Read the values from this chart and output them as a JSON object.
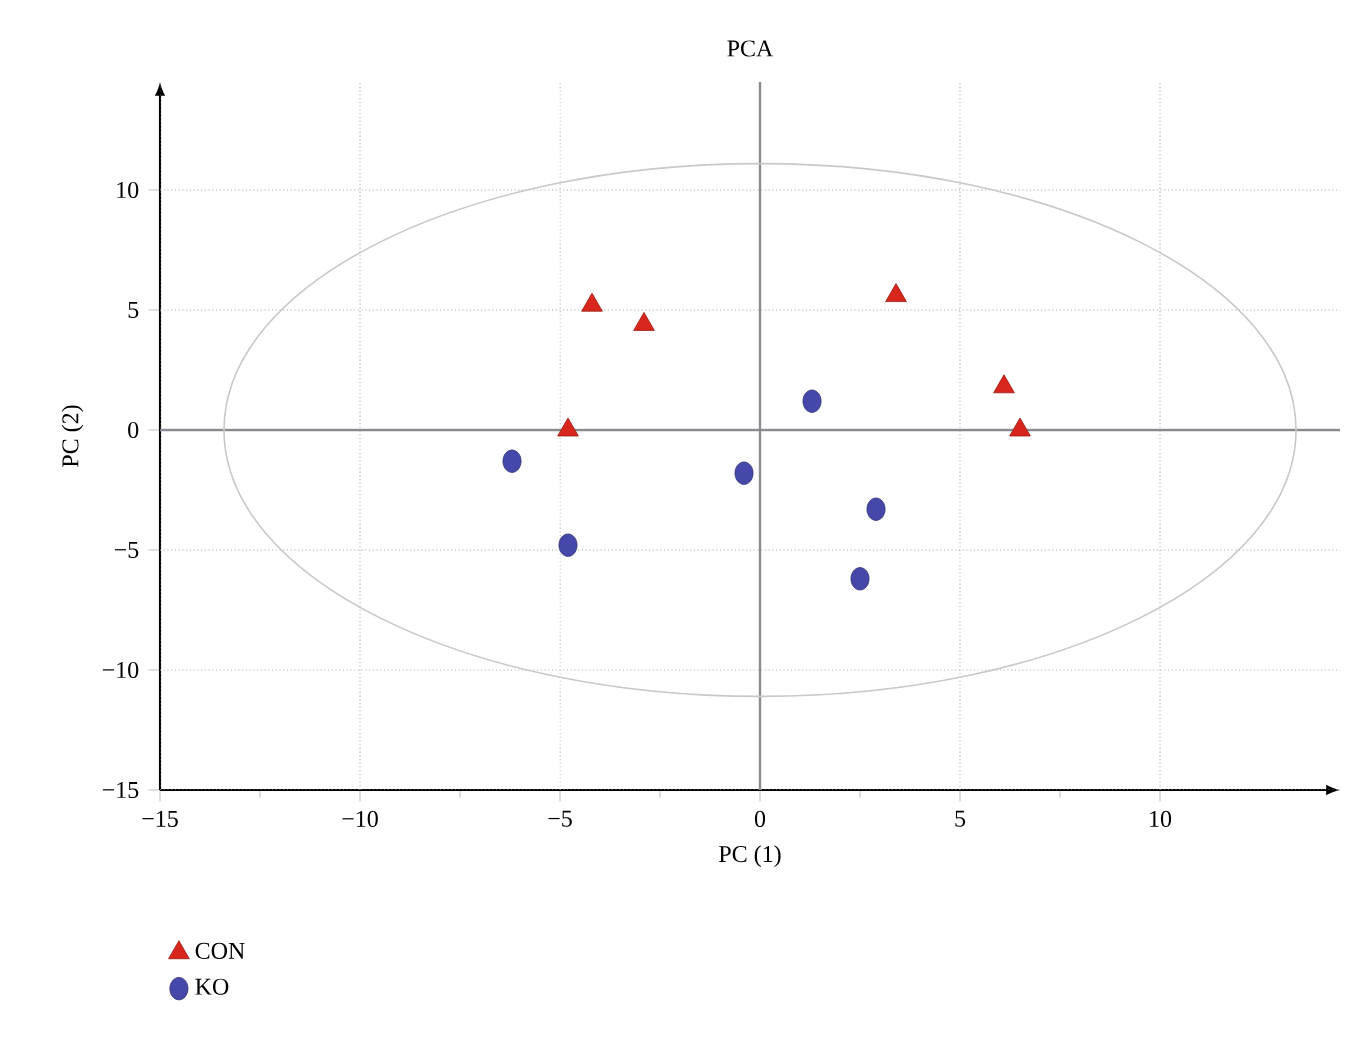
{
  "chart_data": {
    "type": "scatter",
    "title": "PCA",
    "xlabel": "PC (1)",
    "ylabel": "PC (2)",
    "xlim": [
      -15,
      14.5
    ],
    "ylim": [
      -15,
      14.5
    ],
    "xticks": [
      {
        "value": -15,
        "label": "−15"
      },
      {
        "value": -10,
        "label": "−10"
      },
      {
        "value": -5,
        "label": "−5"
      },
      0,
      5,
      10
    ],
    "yticks": [
      {
        "value": -15,
        "label": "−15"
      },
      {
        "value": -10,
        "label": "−10"
      },
      {
        "value": -5,
        "label": "−5"
      },
      0,
      5,
      10
    ],
    "grid": true,
    "legend": "bottom left",
    "series": [
      {
        "name": "CON",
        "color": "#d9261c",
        "marker": "triangle",
        "x": [
          -4.2,
          -2.9,
          -4.8,
          3.4,
          6.1,
          6.5
        ],
        "values": [
          5.2,
          4.4,
          0,
          5.6,
          1.8,
          0
        ]
      },
      {
        "name": "KO",
        "color": "#4548a8",
        "marker": "circle",
        "x": [
          -6.2,
          -4.8,
          -0.4,
          1.3,
          2.9,
          2.5
        ],
        "values": [
          -1.3,
          -4.8,
          -1.8,
          1.2,
          -3.3,
          -6.2
        ]
      }
    ]
  }
}
